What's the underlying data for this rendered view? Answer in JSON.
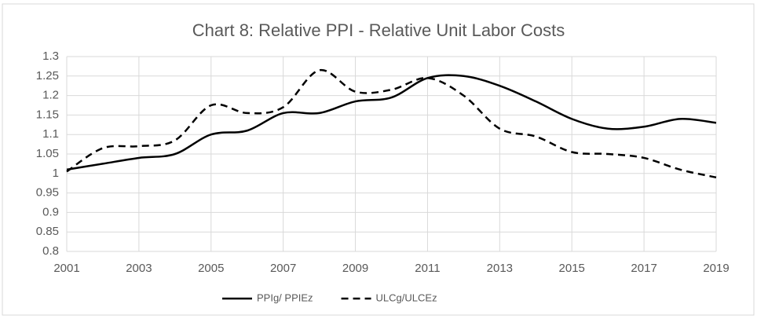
{
  "chart_data": {
    "type": "line",
    "title": "Chart 8: Relative PPI - Relative Unit Labor Costs",
    "x": [
      2001,
      2002,
      2003,
      2004,
      2005,
      2006,
      2007,
      2008,
      2009,
      2010,
      2011,
      2012,
      2013,
      2014,
      2015,
      2016,
      2017,
      2018,
      2019
    ],
    "series": [
      {
        "name": "PPIg/ PPIEz",
        "color": "#000000",
        "line_style": "solid",
        "values": [
          1.01,
          1.025,
          1.04,
          1.05,
          1.1,
          1.11,
          1.155,
          1.155,
          1.185,
          1.195,
          1.245,
          1.25,
          1.225,
          1.185,
          1.14,
          1.115,
          1.12,
          1.14,
          1.13
        ]
      },
      {
        "name": "ULCg/ULCEz",
        "color": "#000000",
        "line_style": "dashed",
        "values": [
          1.005,
          1.065,
          1.07,
          1.085,
          1.175,
          1.155,
          1.17,
          1.265,
          1.21,
          1.215,
          1.245,
          1.2,
          1.115,
          1.095,
          1.055,
          1.05,
          1.04,
          1.01,
          0.99
        ]
      }
    ],
    "xlim": [
      2001,
      2019
    ],
    "xticks": [
      2001,
      2003,
      2005,
      2007,
      2009,
      2011,
      2013,
      2015,
      2017,
      2019
    ],
    "ylim": [
      0.8,
      1.3
    ],
    "yticks": [
      0.8,
      0.85,
      0.9,
      0.95,
      1,
      1.05,
      1.1,
      1.15,
      1.2,
      1.25,
      1.3
    ],
    "grid": true,
    "smooth": true,
    "legend": "bottom"
  }
}
